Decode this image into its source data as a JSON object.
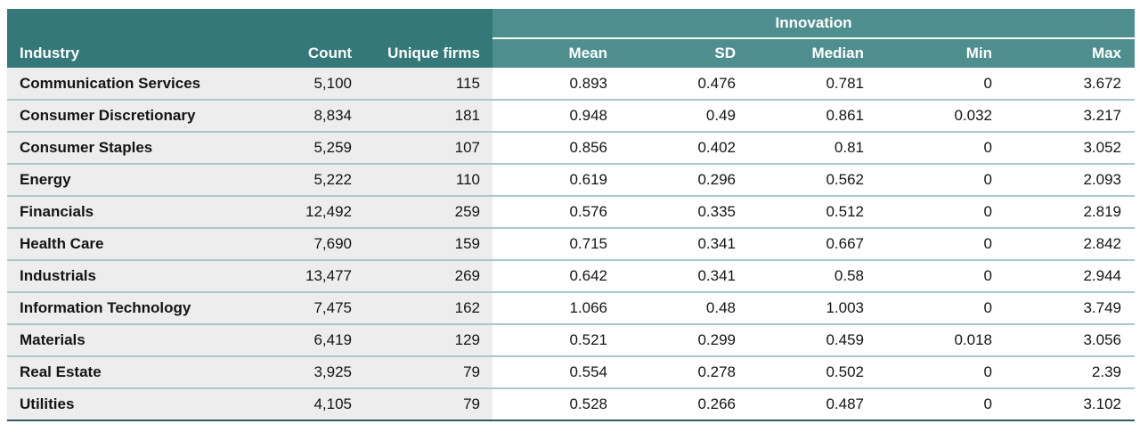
{
  "chart_data": {
    "type": "table",
    "group_label": "Innovation",
    "left_columns": [
      "Industry",
      "Count",
      "Unique firms"
    ],
    "innovation_columns": [
      "Mean",
      "SD",
      "Median",
      "Min",
      "Max"
    ],
    "rows": [
      [
        "Communication Services",
        "5,100",
        "115",
        "0.893",
        "0.476",
        "0.781",
        "0",
        "3.672"
      ],
      [
        "Consumer Discretionary",
        "8,834",
        "181",
        "0.948",
        "0.49",
        "0.861",
        "0.032",
        "3.217"
      ],
      [
        "Consumer Staples",
        "5,259",
        "107",
        "0.856",
        "0.402",
        "0.81",
        "0",
        "3.052"
      ],
      [
        "Energy",
        "5,222",
        "110",
        "0.619",
        "0.296",
        "0.562",
        "0",
        "2.093"
      ],
      [
        "Financials",
        "12,492",
        "259",
        "0.576",
        "0.335",
        "0.512",
        "0",
        "2.819"
      ],
      [
        "Health Care",
        "7,690",
        "159",
        "0.715",
        "0.341",
        "0.667",
        "0",
        "2.842"
      ],
      [
        "Industrials",
        "13,477",
        "269",
        "0.642",
        "0.341",
        "0.58",
        "0",
        "2.944"
      ],
      [
        "Information Technology",
        "7,475",
        "162",
        "1.066",
        "0.48",
        "1.003",
        "0",
        "3.749"
      ],
      [
        "Materials",
        "6,419",
        "129",
        "0.521",
        "0.299",
        "0.459",
        "0.018",
        "3.056"
      ],
      [
        "Real Estate",
        "3,925",
        "79",
        "0.554",
        "0.278",
        "0.502",
        "0",
        "2.39"
      ],
      [
        "Utilities",
        "4,105",
        "79",
        "0.528",
        "0.266",
        "0.487",
        "0",
        "3.102"
      ]
    ]
  },
  "colors": {
    "header_dark": "#347879",
    "header_light": "#4f8e8f",
    "row_bg": "#ededed",
    "divider": "#a9c9c9",
    "bottom_border": "#335a60",
    "text": "#141414",
    "header_text": "#ffffff"
  }
}
